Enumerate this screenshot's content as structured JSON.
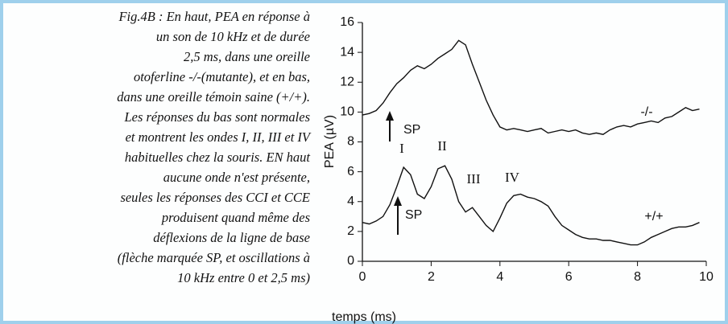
{
  "caption": [
    "Fig.4B : En haut, PEA en réponse à",
    "un son de 10 kHz et de durée",
    "2,5 ms, dans une oreille",
    "otoferline -/-(mutante), et en bas,",
    "dans une oreille témoin saine (+/+).",
    "Les réponses du bas sont normales",
    "et montrent les ondes I, II, III et IV",
    "habituelles chez la souris. EN haut",
    "aucune onde n'est présente,",
    "seules les réponses des CCI et CCE",
    "produisent quand même des",
    "déflexions de la ligne de base",
    "(flèche marquée SP, et oscillations à",
    "10 kHz entre 0 et 2,5 ms)"
  ],
  "chart_data": {
    "type": "line",
    "x_label": "temps (ms)",
    "y_label": "PEA (µV)",
    "x": [
      0,
      0.2,
      0.4,
      0.6,
      0.8,
      1.0,
      1.2,
      1.4,
      1.6,
      1.8,
      2.0,
      2.2,
      2.4,
      2.6,
      2.8,
      3.0,
      3.2,
      3.4,
      3.6,
      3.8,
      4.0,
      4.2,
      4.4,
      4.6,
      4.8,
      5.0,
      5.2,
      5.4,
      5.6,
      5.8,
      6.0,
      6.2,
      6.4,
      6.6,
      6.8,
      7.0,
      7.2,
      7.4,
      7.6,
      7.8,
      8.0,
      8.2,
      8.4,
      8.6,
      8.8,
      9.0,
      9.2,
      9.4,
      9.6,
      9.8
    ],
    "series": [
      {
        "name": "-/-",
        "color": "#111111",
        "values": [
          9.8,
          9.9,
          10.1,
          10.6,
          11.3,
          11.9,
          12.3,
          12.8,
          13.1,
          12.9,
          13.2,
          13.6,
          13.9,
          14.2,
          14.8,
          14.5,
          13.2,
          12.0,
          10.8,
          9.8,
          9.0,
          8.8,
          8.9,
          8.8,
          8.7,
          8.8,
          8.9,
          8.6,
          8.7,
          8.8,
          8.7,
          8.8,
          8.6,
          8.5,
          8.6,
          8.5,
          8.8,
          9.0,
          9.1,
          9.0,
          9.2,
          9.3,
          9.4,
          9.3,
          9.6,
          9.7,
          10.0,
          10.3,
          10.1,
          10.2
        ]
      },
      {
        "name": "+/+",
        "color": "#111111",
        "values": [
          2.6,
          2.5,
          2.7,
          3.0,
          3.8,
          5.0,
          6.3,
          5.8,
          4.5,
          4.2,
          5.0,
          6.2,
          6.4,
          5.5,
          4.0,
          3.3,
          3.6,
          3.0,
          2.4,
          2.0,
          2.9,
          3.9,
          4.4,
          4.5,
          4.3,
          4.2,
          4.0,
          3.7,
          3.0,
          2.4,
          2.1,
          1.8,
          1.6,
          1.5,
          1.5,
          1.4,
          1.4,
          1.3,
          1.2,
          1.1,
          1.1,
          1.3,
          1.6,
          1.8,
          2.0,
          2.2,
          2.3,
          2.3,
          2.4,
          2.6
        ]
      }
    ],
    "annotations": [
      "SP",
      "SP",
      "I",
      "II",
      "III",
      "IV"
    ],
    "xlim": [
      0,
      10
    ],
    "xticks": [
      0,
      2,
      4,
      6,
      8,
      10
    ],
    "ylim": [
      0,
      16
    ],
    "yticks": [
      0,
      2,
      4,
      6,
      8,
      10,
      12,
      14,
      16
    ],
    "grid": false
  }
}
